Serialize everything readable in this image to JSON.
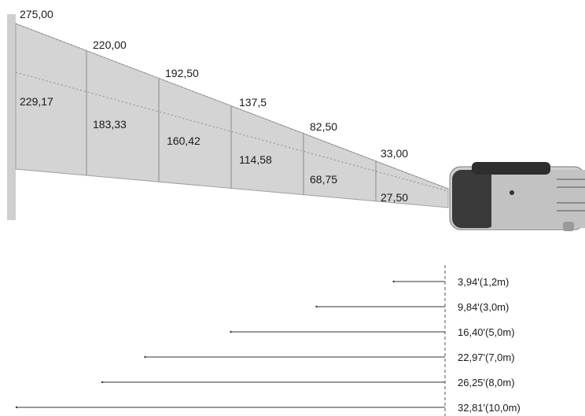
{
  "diagram": {
    "screen_sizes": [
      {
        "diagonal": "275,00",
        "width": "229,17"
      },
      {
        "diagonal": "220,00",
        "width": "183,33"
      },
      {
        "diagonal": "192,50",
        "width": "160,42"
      },
      {
        "diagonal": "137,5",
        "width": "114,58"
      },
      {
        "diagonal": "82,50",
        "width": "68,75"
      },
      {
        "diagonal": "33,00",
        "width": "27,50"
      }
    ],
    "distances": [
      {
        "label": "3,94'(1,2m)",
        "meters": 1.2
      },
      {
        "label": "9,84'(3,0m)",
        "meters": 3.0
      },
      {
        "label": "16,40'(5,0m)",
        "meters": 5.0
      },
      {
        "label": "22,97'(7,0m)",
        "meters": 7.0
      },
      {
        "label": "26,25'(8,0m)",
        "meters": 8.0
      },
      {
        "label": "32,81'(10,0m)",
        "meters": 10.0
      }
    ],
    "colors": {
      "wall": "#cfcfcf",
      "beam": "#d4d4d4",
      "beam_edge": "#9a9a9a",
      "projector_body": "#bdbdbd",
      "projector_dark": "#3a3a3a"
    },
    "projector_icon": "projector-icon"
  }
}
